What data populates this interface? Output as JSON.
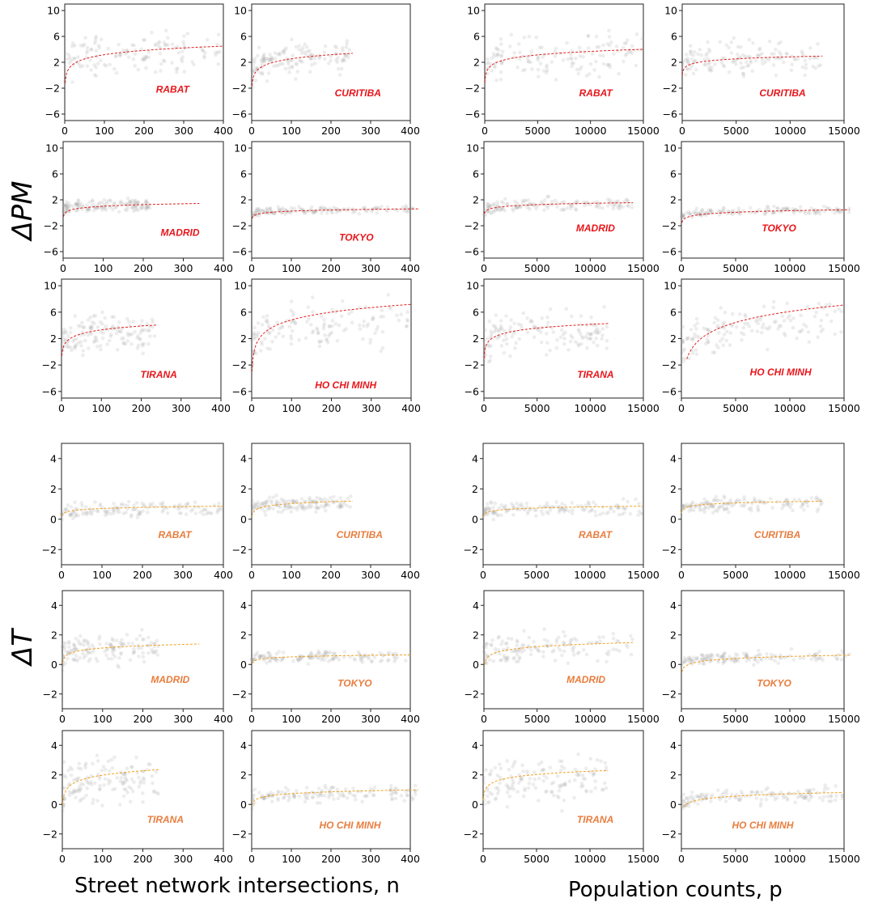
{
  "chart_data": {
    "type": "scatter",
    "title": "",
    "row_labels": {
      "pm": "ΔPM",
      "t": "ΔT"
    },
    "column_xlabels": {
      "street": "Street network intersections, n",
      "population": "Population counts, p"
    },
    "colors": {
      "pm": "#e8161b",
      "t": "#e87d3e",
      "pm_curve": "#e02020",
      "t_curve": "#f0a020",
      "points": "#9a9a9a"
    },
    "axes": {
      "pm": {
        "ylim": [
          -7,
          11
        ],
        "yticks": [
          "−6",
          "−2",
          "2",
          "6",
          "10"
        ],
        "ytick_values": [
          -6,
          -2,
          2,
          6,
          10
        ]
      },
      "t": {
        "ylim": [
          -3,
          5
        ],
        "yticks": [
          "−2",
          "0",
          "2",
          "4"
        ],
        "ytick_values": [
          -2,
          0,
          2,
          4
        ]
      },
      "street": {
        "xlim": [
          0,
          400
        ],
        "xticks": [
          "0",
          "100",
          "200",
          "300",
          "400"
        ],
        "xtick_values": [
          0,
          100,
          200,
          300,
          400
        ]
      },
      "population": {
        "xlim": [
          0,
          15000
        ],
        "xticks": [
          "0",
          "5000",
          "10000",
          "15000"
        ],
        "xtick_values": [
          0,
          5000,
          10000,
          15000
        ]
      }
    },
    "panels": [
      {
        "id": "pm-n-rabat",
        "city": "RABAT",
        "var": "pm",
        "x": "street",
        "fit": {
          "a": -1.2,
          "b": 0.95,
          "xmin": 1,
          "xmax": 400
        },
        "cloud": {
          "xmax": 400,
          "ymean": 3,
          "yspread": 3
        }
      },
      {
        "id": "pm-n-curitiba",
        "city": "CURITIBA",
        "var": "pm",
        "x": "street",
        "fit": {
          "a": -1.6,
          "b": 0.9,
          "xmin": 1,
          "xmax": 255
        },
        "cloud": {
          "xmax": 250,
          "ymean": 2.5,
          "yspread": 2.5
        }
      },
      {
        "id": "pm-p-rabat",
        "city": "RABAT",
        "var": "pm",
        "x": "population",
        "fit": {
          "a": -3.5,
          "b": 0.78,
          "xmin": 20,
          "xmax": 15000
        },
        "cloud": {
          "xmax": 15000,
          "ymean": 3,
          "yspread": 3
        }
      },
      {
        "id": "pm-p-curitiba",
        "city": "CURITIBA",
        "var": "pm",
        "x": "population",
        "fit": {
          "a": -1.3,
          "b": 0.45,
          "xmin": 20,
          "xmax": 13000
        },
        "cloud": {
          "xmax": 13000,
          "ymean": 2.5,
          "yspread": 2.5
        }
      },
      {
        "id": "pm-n-madrid",
        "city": "MADRID",
        "var": "pm",
        "x": "street",
        "fit": {
          "a": -0.6,
          "b": 0.35,
          "xmin": 1,
          "xmax": 340
        },
        "cloud": {
          "xmax": 220,
          "ymean": 1,
          "yspread": 1
        }
      },
      {
        "id": "pm-n-tokyo",
        "city": "TOKYO",
        "var": "pm",
        "x": "street",
        "fit": {
          "a": -0.9,
          "b": 0.25,
          "xmin": 1,
          "xmax": 420
        },
        "cloud": {
          "xmax": 420,
          "ymean": 0.4,
          "yspread": 0.6
        }
      },
      {
        "id": "pm-p-madrid",
        "city": "MADRID",
        "var": "pm",
        "x": "population",
        "fit": {
          "a": -1.3,
          "b": 0.3,
          "xmin": 50,
          "xmax": 14000
        },
        "cloud": {
          "xmax": 14000,
          "ymean": 1.1,
          "yspread": 1
        }
      },
      {
        "id": "pm-p-tokyo",
        "city": "TOKYO",
        "var": "pm",
        "x": "population",
        "fit": {
          "a": -2.9,
          "b": 0.35,
          "xmin": 50,
          "xmax": 15500
        },
        "cloud": {
          "xmax": 15500,
          "ymean": 0.4,
          "yspread": 0.6
        }
      },
      {
        "id": "pm-n-tirana",
        "city": "TIRANA",
        "var": "pm",
        "x": "street",
        "fit": {
          "a": -0.6,
          "b": 0.85,
          "xmin": 1,
          "xmax": 240
        },
        "cloud": {
          "xmax": 240,
          "ymean": 2,
          "yspread": 3
        }
      },
      {
        "id": "pm-n-hochiminh",
        "city": "HO CHI MINH",
        "var": "pm",
        "x": "street",
        "fit": {
          "a": -3.0,
          "b": 1.7,
          "xmin": 1,
          "xmax": 400
        },
        "cloud": {
          "xmax": 400,
          "ymean": 2.5,
          "yspread": 3.5
        }
      },
      {
        "id": "pm-p-tirana",
        "city": "TIRANA",
        "var": "pm",
        "x": "population",
        "fit": {
          "a": -3.4,
          "b": 0.82,
          "xmin": 20,
          "xmax": 11700
        },
        "cloud": {
          "xmax": 11700,
          "ymean": 2,
          "yspread": 3
        }
      },
      {
        "id": "pm-p-hochiminh",
        "city": "HO CHI MINH",
        "var": "pm",
        "x": "population",
        "fit": {
          "a": -16.0,
          "b": 2.4,
          "xmin": 500,
          "xmax": 15000
        },
        "cloud": {
          "xmax": 15000,
          "ymean": 3,
          "yspread": 3
        }
      },
      {
        "id": "t-n-rabat",
        "city": "RABAT",
        "var": "t",
        "x": "street",
        "fit": {
          "a": 0.2,
          "b": 0.11,
          "xmin": 1,
          "xmax": 400
        },
        "cloud": {
          "xmax": 400,
          "ymean": 0.6,
          "yspread": 0.5
        }
      },
      {
        "id": "t-n-curitiba",
        "city": "CURITIBA",
        "var": "t",
        "x": "street",
        "fit": {
          "a": 0.2,
          "b": 0.18,
          "xmin": 1,
          "xmax": 255
        },
        "cloud": {
          "xmax": 250,
          "ymean": 0.9,
          "yspread": 0.5
        }
      },
      {
        "id": "t-p-rabat",
        "city": "RABAT",
        "var": "t",
        "x": "population",
        "fit": {
          "a": -0.2,
          "b": 0.11,
          "xmin": 20,
          "xmax": 15000
        },
        "cloud": {
          "xmax": 15000,
          "ymean": 0.6,
          "yspread": 0.5
        }
      },
      {
        "id": "t-p-curitiba",
        "city": "CURITIBA",
        "var": "t",
        "x": "population",
        "fit": {
          "a": 0.05,
          "b": 0.12,
          "xmin": 20,
          "xmax": 13000
        },
        "cloud": {
          "xmax": 13000,
          "ymean": 0.9,
          "yspread": 0.5
        }
      },
      {
        "id": "t-n-madrid",
        "city": "MADRID",
        "var": "t",
        "x": "street",
        "fit": {
          "a": 0.1,
          "b": 0.22,
          "xmin": 1,
          "xmax": 340
        },
        "cloud": {
          "xmax": 240,
          "ymean": 1,
          "yspread": 1
        }
      },
      {
        "id": "t-n-tokyo",
        "city": "TOKYO",
        "var": "t",
        "x": "street",
        "fit": {
          "a": 0.05,
          "b": 0.1,
          "xmin": 1,
          "xmax": 400
        },
        "cloud": {
          "xmax": 400,
          "ymean": 0.5,
          "yspread": 0.4
        }
      },
      {
        "id": "t-p-madrid",
        "city": "MADRID",
        "var": "t",
        "x": "population",
        "fit": {
          "a": -1.1,
          "b": 0.27,
          "xmin": 50,
          "xmax": 14000
        },
        "cloud": {
          "xmax": 14000,
          "ymean": 1,
          "yspread": 1
        }
      },
      {
        "id": "t-p-tokyo",
        "city": "TOKYO",
        "var": "t",
        "x": "population",
        "fit": {
          "a": -1.3,
          "b": 0.2,
          "xmin": 50,
          "xmax": 15500
        },
        "cloud": {
          "xmax": 15500,
          "ymean": 0.5,
          "yspread": 0.4
        }
      },
      {
        "id": "t-n-tirana",
        "city": "TIRANA",
        "var": "t",
        "x": "street",
        "fit": {
          "a": 0.0,
          "b": 0.43,
          "xmin": 1,
          "xmax": 240
        },
        "cloud": {
          "xmax": 240,
          "ymean": 1.2,
          "yspread": 1.5
        }
      },
      {
        "id": "t-n-hochiminh",
        "city": "HO CHI MINH",
        "var": "t",
        "x": "street",
        "fit": {
          "a": -0.1,
          "b": 0.18,
          "xmin": 1,
          "xmax": 420
        },
        "cloud": {
          "xmax": 420,
          "ymean": 0.6,
          "yspread": 0.5
        }
      },
      {
        "id": "t-p-tirana",
        "city": "TIRANA",
        "var": "t",
        "x": "population",
        "fit": {
          "a": -0.7,
          "b": 0.32,
          "xmin": 20,
          "xmax": 11700
        },
        "cloud": {
          "xmax": 11700,
          "ymean": 1.2,
          "yspread": 1.5
        }
      },
      {
        "id": "t-p-hochiminh",
        "city": "HO CHI MINH",
        "var": "t",
        "x": "population",
        "fit": {
          "a": -1.4,
          "b": 0.23,
          "xmin": 200,
          "xmax": 15000
        },
        "cloud": {
          "xmax": 15000,
          "ymean": 0.5,
          "yspread": 0.5
        }
      }
    ]
  }
}
